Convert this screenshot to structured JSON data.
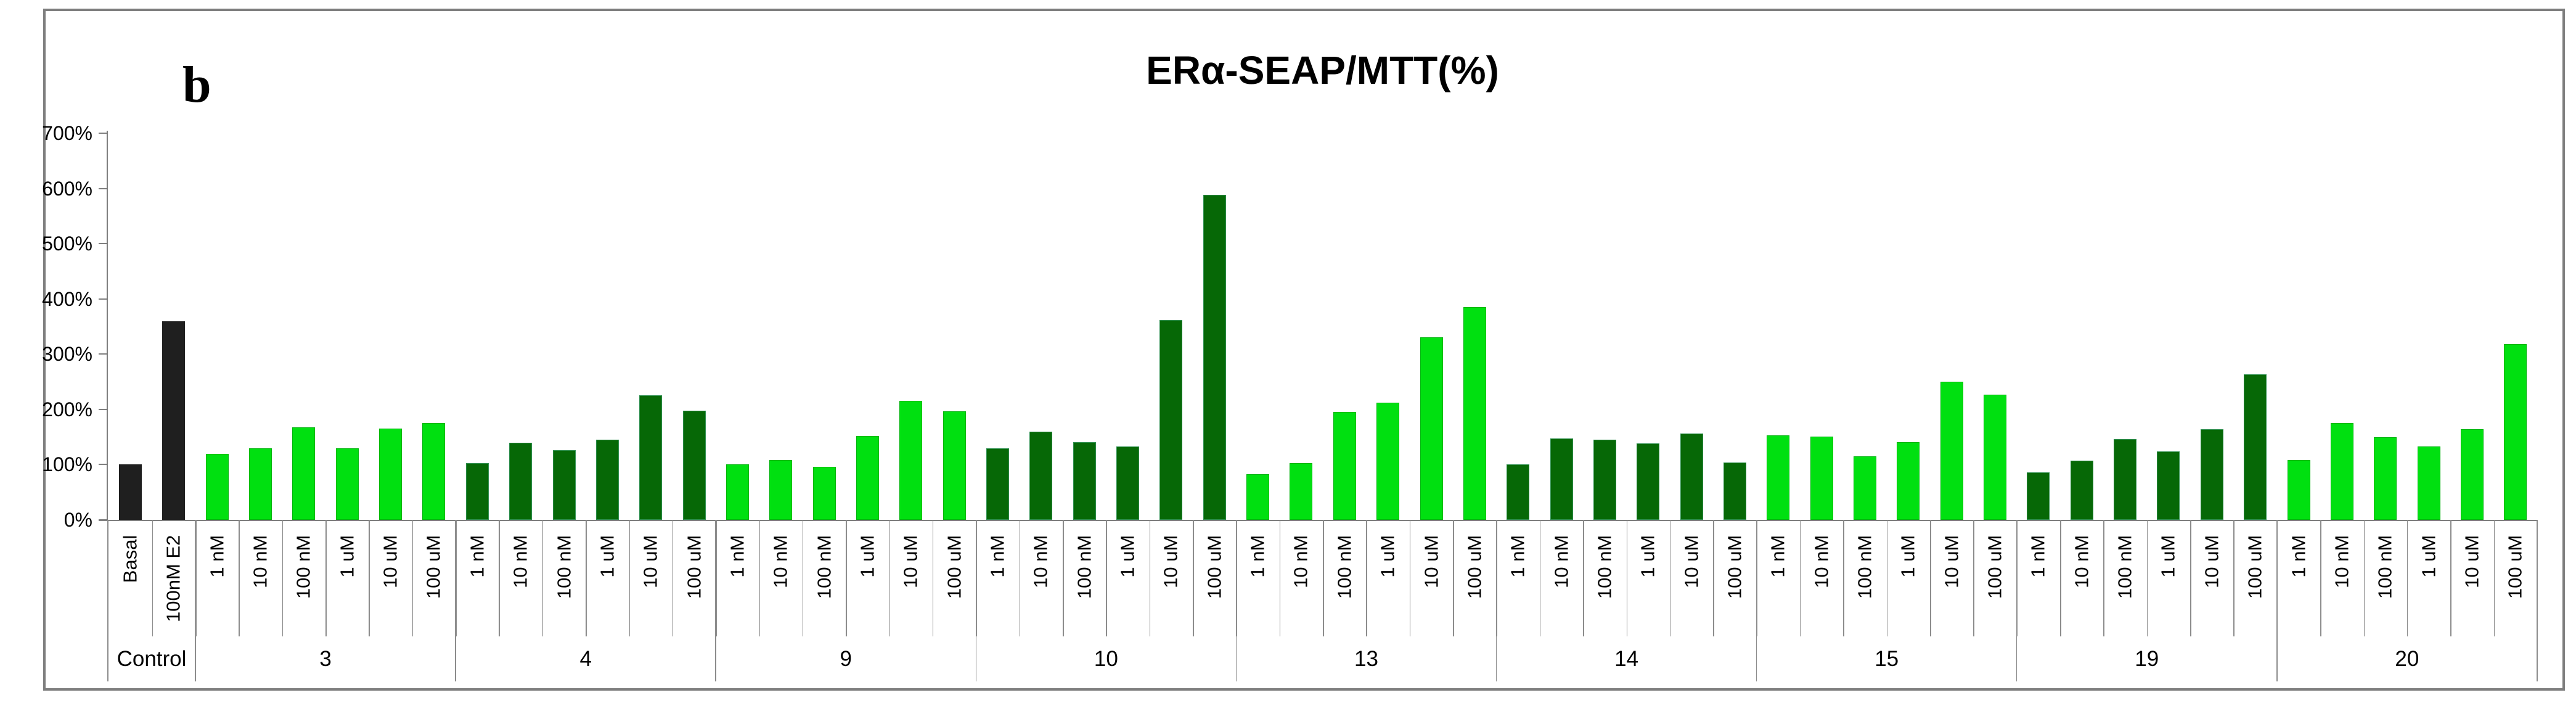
{
  "page": {
    "panel_label": "b"
  },
  "chart_data": {
    "type": "bar",
    "title": "ERα-SEAP/MTT(%)",
    "legend_position": "none",
    "grid": "off",
    "y_axis": {
      "min": 0,
      "max": 700,
      "step": 100,
      "unit": "%",
      "tick_labels": [
        "0%",
        "100%",
        "200%",
        "300%",
        "400%",
        "500%",
        "600%",
        "700%"
      ]
    },
    "colors": {
      "control": "#1f1f1f",
      "bright": "#00e010",
      "bright_edge": "#00b50c",
      "dark": "#066806",
      "dark_edge": "#2f8f4f",
      "axis_gray": "#7f7f7f",
      "grid_gray": "#8c8c8c",
      "frame_gray": "#7e7e7e"
    },
    "groups": [
      {
        "label": "Control",
        "color": "control",
        "bars": [
          {
            "label": "Basal",
            "value": 100
          },
          {
            "label": "100nM E2",
            "value": 360
          }
        ]
      },
      {
        "label": "3",
        "color": "bright",
        "bars": [
          {
            "label": "1 nM",
            "value": 120
          },
          {
            "label": "10 nM",
            "value": 130
          },
          {
            "label": "100 nM",
            "value": 167
          },
          {
            "label": "1 uM",
            "value": 130
          },
          {
            "label": "10 uM",
            "value": 165
          },
          {
            "label": "100 uM",
            "value": 175
          }
        ]
      },
      {
        "label": "4",
        "color": "dark",
        "bars": [
          {
            "label": "1 nM",
            "value": 103
          },
          {
            "label": "10 nM",
            "value": 139
          },
          {
            "label": "100 nM",
            "value": 126
          },
          {
            "label": "1 uM",
            "value": 145
          },
          {
            "label": "10 uM",
            "value": 225
          },
          {
            "label": "100 uM",
            "value": 198
          }
        ]
      },
      {
        "label": "9",
        "color": "bright",
        "bars": [
          {
            "label": "1 nM",
            "value": 101
          },
          {
            "label": "10 nM",
            "value": 108
          },
          {
            "label": "100 nM",
            "value": 96
          },
          {
            "label": "1 uM",
            "value": 152
          },
          {
            "label": "10 uM",
            "value": 215
          },
          {
            "label": "100 uM",
            "value": 196
          }
        ]
      },
      {
        "label": "10",
        "color": "dark",
        "bars": [
          {
            "label": "1 nM",
            "value": 129
          },
          {
            "label": "10 nM",
            "value": 160
          },
          {
            "label": "100 nM",
            "value": 141
          },
          {
            "label": "1 uM",
            "value": 133
          },
          {
            "label": "10 uM",
            "value": 362
          },
          {
            "label": "100 uM",
            "value": 588
          }
        ]
      },
      {
        "label": "13",
        "color": "bright",
        "bars": [
          {
            "label": "1 nM",
            "value": 83
          },
          {
            "label": "10 nM",
            "value": 103
          },
          {
            "label": "100 nM",
            "value": 195
          },
          {
            "label": "1 uM",
            "value": 212
          },
          {
            "label": "10 uM",
            "value": 330
          },
          {
            "label": "100 uM",
            "value": 385
          }
        ]
      },
      {
        "label": "14",
        "color": "dark",
        "bars": [
          {
            "label": "1 nM",
            "value": 101
          },
          {
            "label": "10 nM",
            "value": 147
          },
          {
            "label": "100 nM",
            "value": 145
          },
          {
            "label": "1 uM",
            "value": 138
          },
          {
            "label": "10 uM",
            "value": 156
          },
          {
            "label": "100 uM",
            "value": 104
          }
        ]
      },
      {
        "label": "15",
        "color": "bright",
        "bars": [
          {
            "label": "1 nM",
            "value": 153
          },
          {
            "label": "10 nM",
            "value": 151
          },
          {
            "label": "100 nM",
            "value": 115
          },
          {
            "label": "1 uM",
            "value": 141
          },
          {
            "label": "10 uM",
            "value": 250
          },
          {
            "label": "100 uM",
            "value": 227
          }
        ]
      },
      {
        "label": "19",
        "color": "dark",
        "bars": [
          {
            "label": "1 nM",
            "value": 86
          },
          {
            "label": "10 nM",
            "value": 107
          },
          {
            "label": "100 nM",
            "value": 146
          },
          {
            "label": "1 uM",
            "value": 124
          },
          {
            "label": "10 uM",
            "value": 164
          },
          {
            "label": "100 uM",
            "value": 264
          }
        ]
      },
      {
        "label": "20",
        "color": "bright",
        "bars": [
          {
            "label": "1 nM",
            "value": 108
          },
          {
            "label": "10 nM",
            "value": 175
          },
          {
            "label": "100 nM",
            "value": 150
          },
          {
            "label": "1 uM",
            "value": 133
          },
          {
            "label": "10 uM",
            "value": 164
          },
          {
            "label": "100 uM",
            "value": 318
          }
        ]
      }
    ]
  }
}
